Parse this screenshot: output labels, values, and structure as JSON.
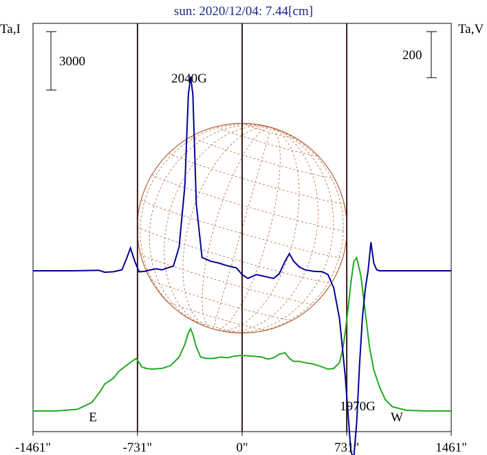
{
  "chart_data": {
    "type": "line",
    "title": "sun: 2020/12/04: 7.44[cm]",
    "left_axis_label": "Ta,I",
    "right_axis_label": "Ta,V",
    "left_scale_bar": "3000",
    "right_scale_bar": "200",
    "x_tick_labels": [
      "-1461\"",
      "-731\"",
      "0\"",
      "731\"",
      "1461\""
    ],
    "x_ticks": [
      -1461,
      -731,
      0,
      731,
      1461
    ],
    "xlim": [
      -1461,
      1461
    ],
    "limb_lines": [
      -1461,
      -731,
      0,
      731,
      1461
    ],
    "limb_labels": {
      "east": "E",
      "west": "W"
    },
    "annotations": [
      {
        "text": "2040G",
        "x": -356,
        "y": 2040
      },
      {
        "text": "1970G",
        "x": 790,
        "y": -1970
      }
    ],
    "grid": false,
    "colors": {
      "I": "#1faa1f",
      "V": "#000099",
      "globe": "#b0643c",
      "limb": "#3a1a1a",
      "title": "#1a2a8c"
    },
    "series": [
      {
        "key": "I",
        "x": [
          -1461,
          -1300,
          -1150,
          -1050,
          -990,
          -960,
          -900,
          -860,
          -810,
          -770,
          -740,
          -720,
          -700,
          -670,
          -630,
          -560,
          -500,
          -440,
          -400,
          -376,
          -360,
          -344,
          -320,
          -290,
          -250,
          -200,
          -150,
          -100,
          -60,
          -20,
          20,
          80,
          140,
          180,
          220,
          260,
          300,
          330,
          360,
          400,
          440,
          500,
          560,
          600,
          640,
          680,
          700,
          720,
          740,
          760,
          780,
          800,
          830,
          860,
          890,
          920,
          960,
          1000,
          1050,
          1150,
          1300,
          1461
        ],
        "y": [
          0,
          0,
          120,
          600,
          1400,
          1900,
          2300,
          2800,
          3200,
          3500,
          3700,
          3400,
          3100,
          3000,
          2950,
          3000,
          3200,
          3800,
          4700,
          5500,
          5800,
          5400,
          4500,
          3800,
          3700,
          3700,
          3800,
          3750,
          3850,
          3900,
          3900,
          3850,
          3800,
          3650,
          3750,
          4000,
          4100,
          3700,
          3500,
          3500,
          3400,
          3300,
          3100,
          2950,
          3000,
          3400,
          4200,
          5500,
          7200,
          9000,
          10500,
          10800,
          9500,
          7000,
          4500,
          2900,
          1700,
          800,
          300,
          50,
          0,
          0
        ]
      },
      {
        "key": "V",
        "x": [
          -1461,
          -1200,
          -1000,
          -960,
          -900,
          -840,
          -810,
          -780,
          -750,
          -720,
          -680,
          -640,
          -600,
          -560,
          -520,
          -480,
          -440,
          -400,
          -376,
          -360,
          -344,
          -320,
          -280,
          -220,
          -160,
          -120,
          -40,
          0,
          40,
          100,
          160,
          220,
          260,
          300,
          330,
          360,
          400,
          440,
          500,
          560,
          600,
          640,
          680,
          700,
          720,
          740,
          760,
          780,
          800,
          820,
          840,
          860,
          880,
          900,
          920,
          940,
          960,
          1000,
          1050,
          1150,
          1300,
          1461
        ],
        "y": [
          0,
          0,
          5,
          -15,
          -10,
          10,
          120,
          240,
          100,
          -10,
          -5,
          10,
          20,
          10,
          30,
          50,
          250,
          900,
          1850,
          2040,
          1850,
          700,
          140,
          100,
          80,
          60,
          30,
          -40,
          -80,
          -40,
          -60,
          -80,
          -30,
          100,
          180,
          100,
          40,
          10,
          -5,
          -10,
          -40,
          -180,
          -500,
          -800,
          -1100,
          -1500,
          -1900,
          -1970,
          -1600,
          -1000,
          -500,
          -200,
          0,
          300,
          80,
          10,
          0,
          0,
          0,
          0,
          0,
          0
        ]
      }
    ]
  }
}
